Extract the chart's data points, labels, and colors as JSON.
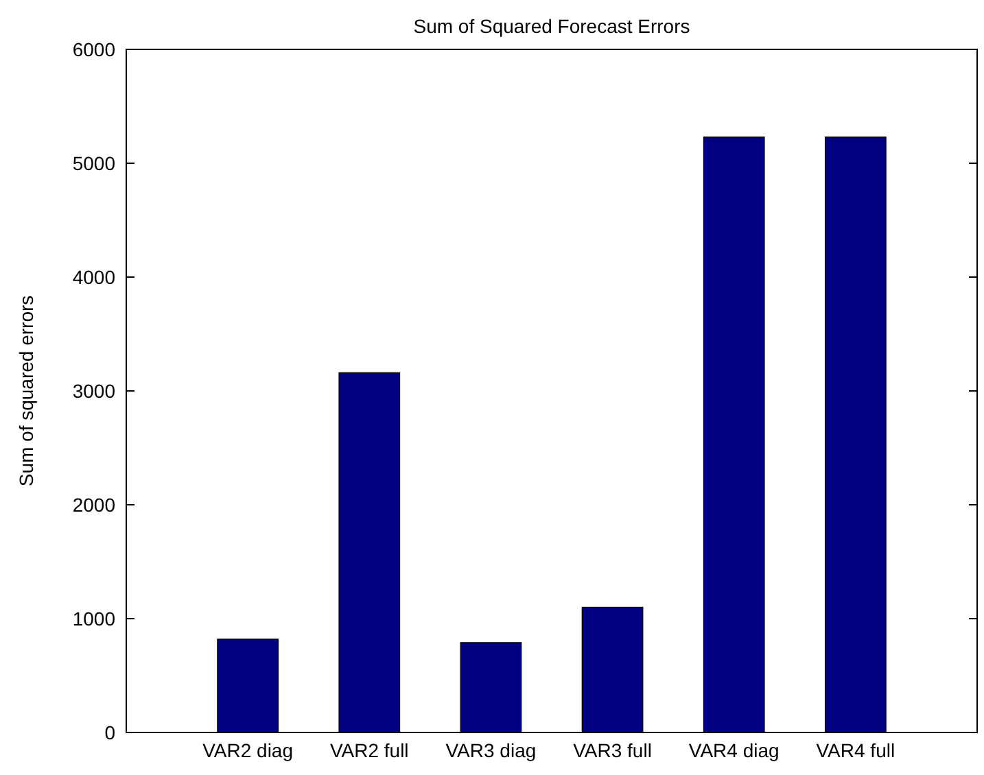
{
  "chart_data": {
    "type": "bar",
    "title": "Sum of Squared Forecast Errors",
    "ylabel": "Sum of squared errors",
    "categories": [
      "VAR2 diag",
      "VAR2 full",
      "VAR3 diag",
      "VAR3 full",
      "VAR4 diag",
      "VAR4 full"
    ],
    "values": [
      820,
      3160,
      790,
      1100,
      5230,
      5230
    ],
    "color": "#000080",
    "ylim": [
      0,
      6000
    ],
    "yticks": [
      0,
      1000,
      2000,
      3000,
      4000,
      5000,
      6000
    ],
    "grid": false
  }
}
